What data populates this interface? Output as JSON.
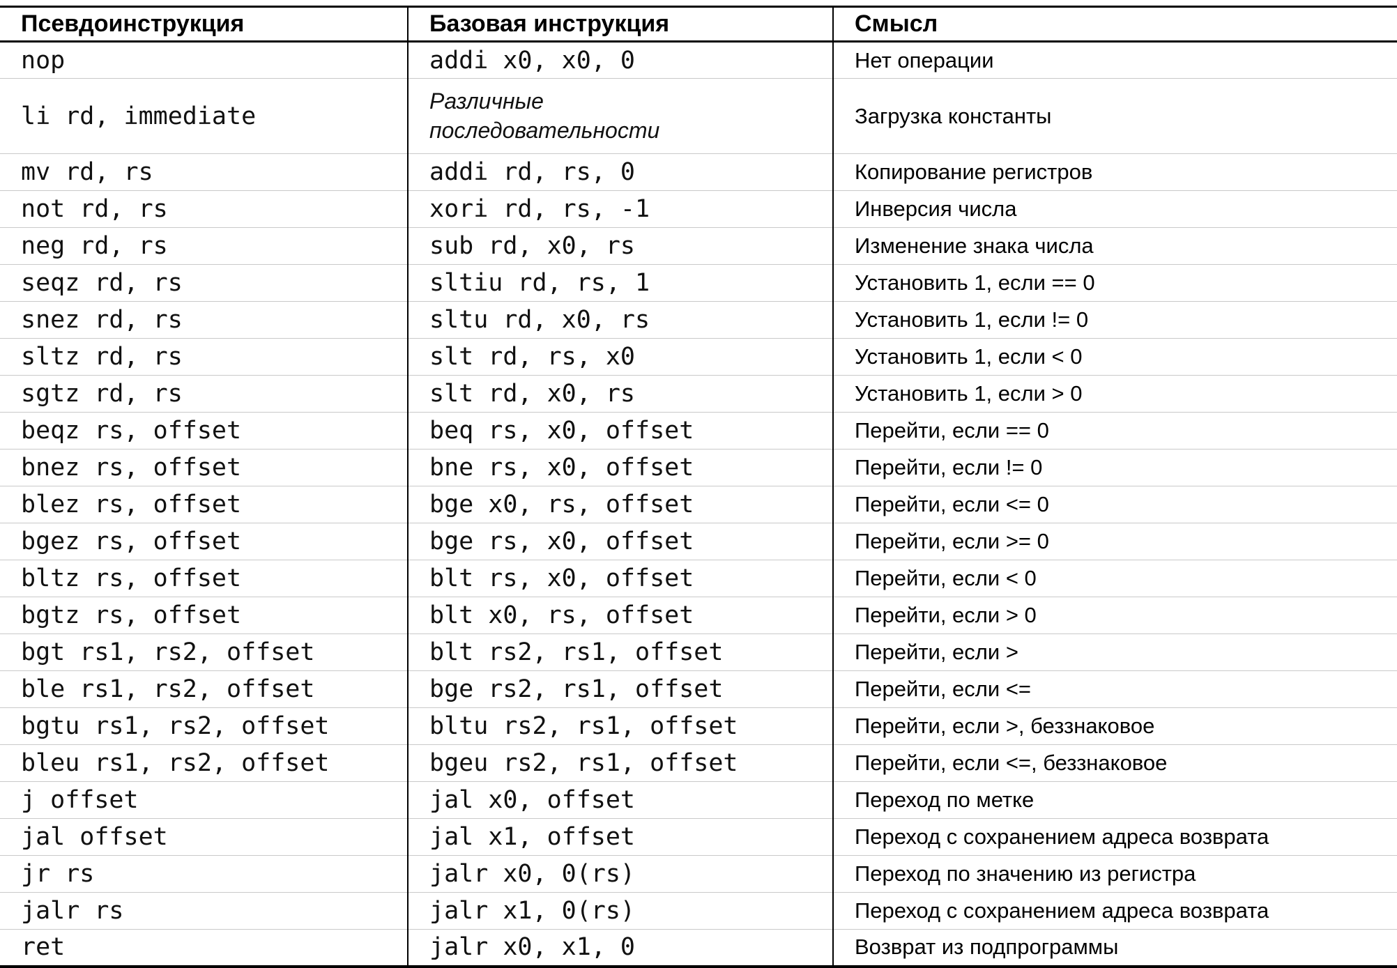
{
  "table": {
    "headers": [
      "Псевдоинструкция",
      "Базовая инструкция",
      "Смысл"
    ],
    "rows": [
      {
        "pseudo": "nop",
        "base": "addi x0, x0, 0",
        "base_italic": false,
        "meaning": "Нет операции"
      },
      {
        "pseudo": "li rd, immediate",
        "base": "Различные последовательности",
        "base_italic": true,
        "meaning": "Загрузка константы"
      },
      {
        "pseudo": "mv rd, rs",
        "base": "addi rd, rs, 0",
        "base_italic": false,
        "meaning": "Копирование регистров"
      },
      {
        "pseudo": "not rd, rs",
        "base": "xori rd, rs, -1",
        "base_italic": false,
        "meaning": "Инверсия числа"
      },
      {
        "pseudo": "neg rd, rs",
        "base": "sub rd, x0, rs",
        "base_italic": false,
        "meaning": "Изменение знака числа"
      },
      {
        "pseudo": "seqz rd, rs",
        "base": "sltiu rd, rs, 1",
        "base_italic": false,
        "meaning": "Установить 1, если == 0"
      },
      {
        "pseudo": "snez rd, rs",
        "base": "sltu rd, x0, rs",
        "base_italic": false,
        "meaning": "Установить 1, если != 0"
      },
      {
        "pseudo": "sltz rd, rs",
        "base": "slt rd, rs, x0",
        "base_italic": false,
        "meaning": "Установить 1, если < 0"
      },
      {
        "pseudo": "sgtz rd, rs",
        "base": "slt rd, x0, rs",
        "base_italic": false,
        "meaning": "Установить 1, если > 0"
      },
      {
        "pseudo": "beqz rs, offset",
        "base": "beq rs, x0, offset",
        "base_italic": false,
        "meaning": "Перейти, если == 0"
      },
      {
        "pseudo": "bnez rs, offset",
        "base": "bne rs, x0, offset",
        "base_italic": false,
        "meaning": "Перейти, если != 0"
      },
      {
        "pseudo": "blez rs, offset",
        "base": "bge x0, rs, offset",
        "base_italic": false,
        "meaning": "Перейти, если <= 0"
      },
      {
        "pseudo": "bgez rs, offset",
        "base": "bge rs, x0, offset",
        "base_italic": false,
        "meaning": "Перейти, если >= 0"
      },
      {
        "pseudo": "bltz rs, offset",
        "base": "blt rs, x0, offset",
        "base_italic": false,
        "meaning": "Перейти, если < 0"
      },
      {
        "pseudo": "bgtz rs, offset",
        "base": "blt x0, rs, offset",
        "base_italic": false,
        "meaning": "Перейти, если > 0"
      },
      {
        "pseudo": "bgt rs1, rs2, offset",
        "base": "blt rs2, rs1, offset",
        "base_italic": false,
        "meaning": "Перейти, если >"
      },
      {
        "pseudo": "ble rs1, rs2, offset",
        "base": "bge rs2, rs1, offset",
        "base_italic": false,
        "meaning": "Перейти, если <="
      },
      {
        "pseudo": "bgtu rs1, rs2, offset",
        "base": "bltu rs2, rs1, offset",
        "base_italic": false,
        "meaning": "Перейти, если >, беззнаковое"
      },
      {
        "pseudo": "bleu rs1, rs2, offset",
        "base": "bgeu rs2, rs1, offset",
        "base_italic": false,
        "meaning": "Перейти, если <=, беззнаковое"
      },
      {
        "pseudo": "j offset",
        "base": "jal x0, offset",
        "base_italic": false,
        "meaning": "Переход по метке"
      },
      {
        "pseudo": "jal offset",
        "base": "jal x1, offset",
        "base_italic": false,
        "meaning": "Переход с сохранением адреса возврата"
      },
      {
        "pseudo": "jr rs",
        "base": "jalr x0, 0(rs)",
        "base_italic": false,
        "meaning": "Переход по значению из регистра"
      },
      {
        "pseudo": "jalr rs",
        "base": "jalr x1, 0(rs)",
        "base_italic": false,
        "meaning": "Переход с сохранением адреса возврата"
      },
      {
        "pseudo": "ret",
        "base": "jalr x0, x1, 0",
        "base_italic": false,
        "meaning": "Возврат из подпрограммы"
      }
    ],
    "colors": {
      "border_strong": "#000000",
      "row_separator": "#c9c9c9",
      "text": "#000000",
      "background": "#ffffff"
    }
  }
}
